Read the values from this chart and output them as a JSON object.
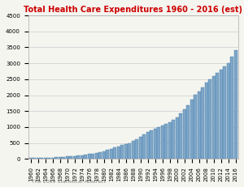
{
  "title": "Total Health Care Expenditures 1960 - 2016 (est)",
  "title_color": "#cc0000",
  "source_text": "The 2009 Statistical Abstract",
  "ylim": [
    0,
    4500
  ],
  "yticks": [
    0,
    500,
    1000,
    1500,
    2000,
    2500,
    3000,
    3500,
    4000,
    4500
  ],
  "bar_color": "#7da6c8",
  "bar_edge_color": "#4a7fa8",
  "years": [
    1960,
    1961,
    1962,
    1963,
    1964,
    1965,
    1966,
    1967,
    1968,
    1969,
    1970,
    1971,
    1972,
    1973,
    1974,
    1975,
    1976,
    1977,
    1978,
    1979,
    1980,
    1981,
    1982,
    1983,
    1984,
    1985,
    1986,
    1987,
    1988,
    1989,
    1990,
    1991,
    1992,
    1993,
    1994,
    1995,
    1996,
    1997,
    1998,
    1999,
    2000,
    2001,
    2002,
    2003,
    2004,
    2005,
    2006,
    2007,
    2008,
    2009,
    2010,
    2011,
    2012,
    2013,
    2014,
    2015,
    2016
  ],
  "values": [
    27,
    29,
    31,
    34,
    38,
    42,
    46,
    52,
    58,
    65,
    74,
    83,
    93,
    103,
    116,
    133,
    150,
    170,
    192,
    216,
    247,
    287,
    323,
    357,
    391,
    428,
    455,
    494,
    562,
    623,
    697,
    762,
    836,
    888,
    937,
    993,
    1042,
    1092,
    1150,
    1220,
    1310,
    1425,
    1553,
    1679,
    1855,
    2016,
    2105,
    2241,
    2394,
    2486,
    2600,
    2700,
    2800,
    2900,
    3000,
    3200,
    3400
  ],
  "background_color": "#f5f5f0",
  "grid_color": "#cccccc",
  "font_size_title": 7,
  "font_size_ticks": 5,
  "font_size_source": 4.5
}
